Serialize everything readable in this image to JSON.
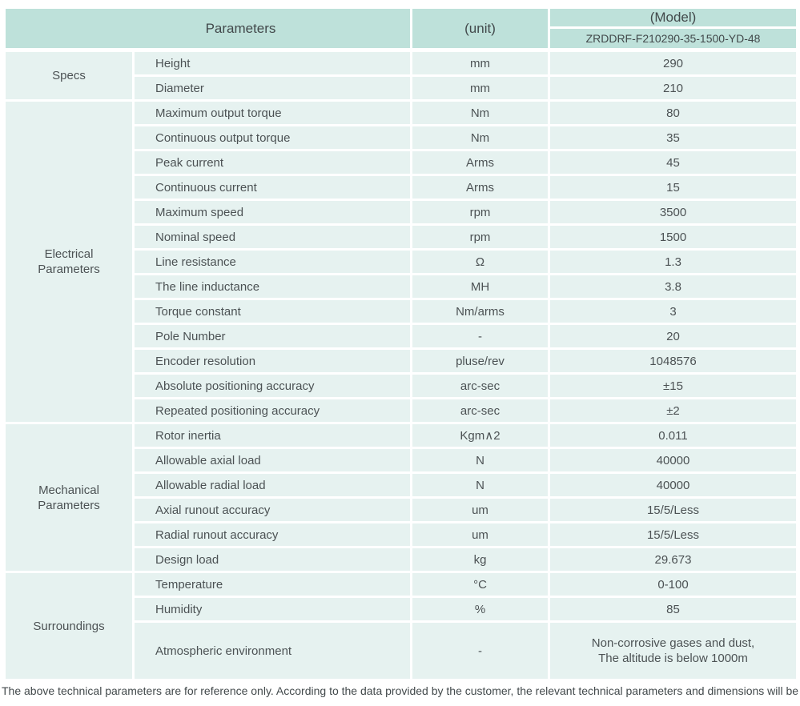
{
  "colors": {
    "header_bg": "#bee1da",
    "row_bg": "#e6f2f0",
    "text": "#4c5254"
  },
  "header": {
    "parameters_label": "Parameters",
    "unit_label": "(unit)",
    "model_label": "(Model)",
    "model_value": "ZRDDRF-F210290-35-1500-YD-48"
  },
  "groups": [
    {
      "id": "specs",
      "name": "Specs",
      "rows": [
        {
          "param": "Height",
          "unit": "mm",
          "value": "290"
        },
        {
          "param": "Diameter",
          "unit": "mm",
          "value": "210"
        }
      ]
    },
    {
      "id": "electrical",
      "name": "Electrical\nParameters",
      "rows": [
        {
          "param": "Maximum output torque",
          "unit": "Nm",
          "value": "80"
        },
        {
          "param": "Continuous output torque",
          "unit": "Nm",
          "value": "35"
        },
        {
          "param": "Peak current",
          "unit": "Arms",
          "value": "45"
        },
        {
          "param": "Continuous current",
          "unit": "Arms",
          "value": "15"
        },
        {
          "param": "Maximum speed",
          "unit": "rpm",
          "value": "3500"
        },
        {
          "param": "Nominal speed",
          "unit": "rpm",
          "value": "1500"
        },
        {
          "param": "Line resistance",
          "unit": "Ω",
          "value": "1.3"
        },
        {
          "param": "The line inductance",
          "unit": "MH",
          "value": "3.8"
        },
        {
          "param": "Torque constant",
          "unit": "Nm/arms",
          "value": "3"
        },
        {
          "param": "Pole Number",
          "unit": "-",
          "value": "20"
        },
        {
          "param": "Encoder resolution",
          "unit": "pluse/rev",
          "value": "1048576"
        },
        {
          "param": "Absolute positioning accuracy",
          "unit": "arc-sec",
          "value": "±15"
        },
        {
          "param": "Repeated positioning accuracy",
          "unit": "arc-sec",
          "value": "±2"
        }
      ]
    },
    {
      "id": "mechanical",
      "name": "Mechanical\nParameters",
      "rows": [
        {
          "param": "Rotor inertia",
          "unit": "Kgm∧2",
          "value": "0.011"
        },
        {
          "param": "Allowable axial load",
          "unit": "N",
          "value": "40000"
        },
        {
          "param": "Allowable radial load",
          "unit": "N",
          "value": "40000"
        },
        {
          "param": "Axial runout accuracy",
          "unit": "um",
          "value": "15/5/Less"
        },
        {
          "param": "Radial runout accuracy",
          "unit": "um",
          "value": "15/5/Less"
        },
        {
          "param": "Design load",
          "unit": "kg",
          "value": "29.673"
        }
      ]
    },
    {
      "id": "surroundings",
      "name": "Surroundings",
      "rows": [
        {
          "param": "Temperature",
          "unit": "°C",
          "value": "0-100"
        },
        {
          "param": "Humidity",
          "unit": "%",
          "value": "85"
        },
        {
          "param": "Atmospheric environment",
          "unit": "-",
          "value": "Non-corrosive gases and dust,\nThe altitude is below 1000m",
          "tall": true
        }
      ]
    }
  ],
  "footer": "The above technical parameters are for reference only. According to the data provided by the customer, the relevant technical parameters and dimensions will be issued."
}
